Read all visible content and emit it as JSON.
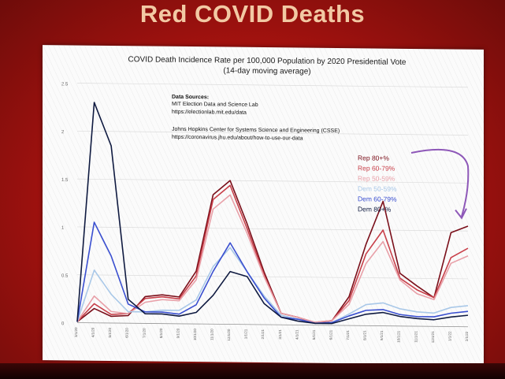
{
  "slide": {
    "title": "Red COVID Deaths"
  },
  "colors": {
    "background": "#b2150f",
    "title": "#f2c9a4",
    "arrow": "#8e58b8"
  },
  "chart_data": {
    "type": "line",
    "title": "COVID Death Incidence Rate per 100,000 Population by 2020 Presidential Vote",
    "subtitle": "(14-day moving average)",
    "sources_heading": "Data Sources:",
    "sources": [
      "MIT Election Data and Science Lab",
      "https://electionlab.mit.edu/data",
      "",
      "Johns Hopkins Center for Systems Science and Engineering (CSSE)",
      "https://coronavirus.jhu.edu/about/how-to-use-our-data"
    ],
    "xlabel": "",
    "ylabel": "",
    "ylim": [
      0,
      2.5
    ],
    "yticks": [
      0,
      0.5,
      1,
      1.5,
      2,
      2.5
    ],
    "ytick_labels": [
      "0",
      "0.5",
      "1",
      "1.5",
      "2",
      "2.5"
    ],
    "x": [
      0,
      1,
      2,
      3,
      4,
      5,
      6,
      7,
      8,
      9,
      10,
      11,
      12,
      13,
      14,
      15,
      16,
      17,
      18,
      19,
      20,
      21,
      22,
      23
    ],
    "xlabels": [
      "3/1/20",
      "4/1/20",
      "5/1/20",
      "6/1/20",
      "7/1/20",
      "8/1/20",
      "9/1/20",
      "10/1/20",
      "11/1/20",
      "12/1/20",
      "1/1/21",
      "2/1/21",
      "3/1/21",
      "4/1/21",
      "5/1/21",
      "6/1/21",
      "7/1/21",
      "8/1/21",
      "9/1/21",
      "10/1/21",
      "11/1/21",
      "12/1/21",
      "1/1/22",
      "2/1/22"
    ],
    "series": [
      {
        "name": "Rep 80+%",
        "color": "#7a0f1a",
        "values": [
          0.01,
          0.15,
          0.07,
          0.08,
          0.28,
          0.3,
          0.28,
          0.55,
          1.35,
          1.5,
          1.05,
          0.55,
          0.12,
          0.08,
          0.02,
          0.05,
          0.3,
          0.85,
          1.3,
          0.55,
          0.42,
          0.3,
          0.98,
          1.05
        ]
      },
      {
        "name": "Rep 60-79%",
        "color": "#c8404a",
        "values": [
          0.01,
          0.2,
          0.09,
          0.1,
          0.26,
          0.28,
          0.26,
          0.5,
          1.3,
          1.45,
          1.0,
          0.52,
          0.12,
          0.08,
          0.03,
          0.05,
          0.26,
          0.75,
          1.0,
          0.5,
          0.38,
          0.3,
          0.72,
          0.82
        ]
      },
      {
        "name": "Rep 50-59%",
        "color": "#e8a0a8",
        "values": [
          0.01,
          0.28,
          0.12,
          0.1,
          0.22,
          0.25,
          0.24,
          0.46,
          1.2,
          1.35,
          0.95,
          0.5,
          0.12,
          0.08,
          0.03,
          0.05,
          0.22,
          0.65,
          0.88,
          0.48,
          0.34,
          0.28,
          0.66,
          0.74
        ]
      },
      {
        "name": "Dem 50-59%",
        "color": "#a9c8e8",
        "values": [
          0.01,
          0.55,
          0.3,
          0.12,
          0.12,
          0.14,
          0.14,
          0.25,
          0.6,
          0.8,
          0.55,
          0.3,
          0.1,
          0.06,
          0.02,
          0.03,
          0.12,
          0.22,
          0.24,
          0.18,
          0.15,
          0.14,
          0.2,
          0.22
        ]
      },
      {
        "name": "Dem 60-79%",
        "color": "#3a4fd0",
        "values": [
          0.01,
          1.05,
          0.7,
          0.2,
          0.12,
          0.12,
          0.1,
          0.2,
          0.55,
          0.85,
          0.55,
          0.28,
          0.08,
          0.06,
          0.02,
          0.03,
          0.1,
          0.16,
          0.17,
          0.12,
          0.1,
          0.1,
          0.14,
          0.16
        ]
      },
      {
        "name": "Dem 80+%",
        "color": "#0f1a40",
        "values": [
          0.01,
          2.3,
          1.85,
          0.25,
          0.1,
          0.1,
          0.08,
          0.12,
          0.3,
          0.55,
          0.5,
          0.22,
          0.08,
          0.04,
          0.02,
          0.02,
          0.07,
          0.12,
          0.14,
          0.1,
          0.08,
          0.07,
          0.1,
          0.12
        ]
      }
    ],
    "grid": true,
    "legend": "right"
  }
}
